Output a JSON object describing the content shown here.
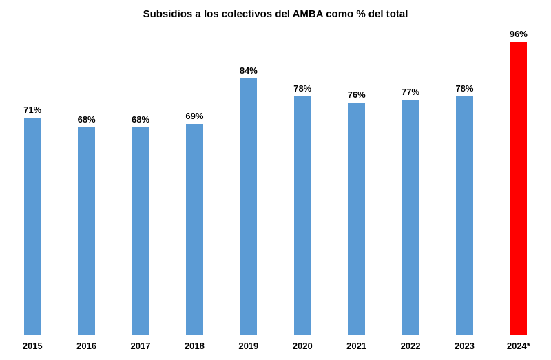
{
  "chart_data": {
    "type": "bar",
    "title": "Subsidios a los colectivos del AMBA como % del total",
    "categories": [
      "2015",
      "2016",
      "2017",
      "2018",
      "2019",
      "2020",
      "2021",
      "2022",
      "2023",
      "2024*"
    ],
    "values": [
      71,
      68,
      68,
      69,
      84,
      78,
      76,
      77,
      78,
      96
    ],
    "value_labels": [
      "71%",
      "68%",
      "68%",
      "69%",
      "84%",
      "78%",
      "76%",
      "77%",
      "78%",
      "96%"
    ],
    "xlabel": "",
    "ylabel": "",
    "ylim": [
      0,
      100
    ],
    "grid": false,
    "legend": false,
    "colors": {
      "bar_default": "#5B9BD5",
      "bar_highlight": "#FF0000",
      "axis_line": "#9b9b9b",
      "text": "#000000"
    },
    "highlight_index": 9
  }
}
